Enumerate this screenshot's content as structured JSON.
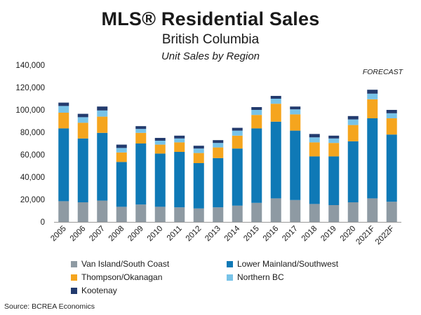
{
  "title": "MLS® Residential Sales",
  "subtitle": "British Columbia",
  "subtitle2": "Unit Sales by Region",
  "forecast_label": "FORECAST",
  "source": "Source: BCREA Economics",
  "colors": {
    "van_island": "#8E9AA3",
    "lower_mainland": "#0F79B6",
    "thompson": "#F5A51E",
    "northern": "#78C3E8",
    "kootenay": "#233B6E",
    "axis": "#999999",
    "text": "#1a1a1a"
  },
  "chart_data": {
    "type": "bar",
    "stacked": true,
    "categories": [
      "2005",
      "2006",
      "2007",
      "2008",
      "2009",
      "2010",
      "2011",
      "2012",
      "2013",
      "2014",
      "2015",
      "2016",
      "2017",
      "2018",
      "2019",
      "2020",
      "2021F",
      "2022F"
    ],
    "ylim": [
      0,
      140000
    ],
    "yticks": [
      0,
      20000,
      40000,
      60000,
      80000,
      100000,
      120000,
      140000
    ],
    "ytick_labels": [
      "0",
      "20,000",
      "40,000",
      "60,000",
      "80,000",
      "100,000",
      "120,000",
      "140,000"
    ],
    "series": [
      {
        "name": "Van Island/South Coast",
        "color_key": "van_island",
        "values": [
          18500,
          17500,
          19000,
          13500,
          15500,
          13500,
          13000,
          12000,
          13000,
          14500,
          17000,
          21000,
          19500,
          16000,
          15000,
          17500,
          21000,
          18000
        ]
      },
      {
        "name": "Lower Mainland/Southwest",
        "color_key": "lower_mainland",
        "values": [
          65000,
          57000,
          60500,
          40000,
          54500,
          47500,
          49500,
          40500,
          44000,
          51000,
          66500,
          68500,
          62000,
          42500,
          43500,
          54500,
          71500,
          60000
        ]
      },
      {
        "name": "Thompson/Okanagan",
        "color_key": "thompson",
        "values": [
          14000,
          14000,
          14500,
          8500,
          9500,
          8000,
          8500,
          9000,
          9500,
          11500,
          12000,
          16000,
          14500,
          12500,
          12000,
          14500,
          17000,
          14500
        ]
      },
      {
        "name": "Northern BC",
        "color_key": "northern",
        "values": [
          6000,
          5000,
          5500,
          4000,
          3500,
          3500,
          3500,
          4000,
          4000,
          4500,
          4500,
          4500,
          4500,
          4500,
          4000,
          5000,
          5000,
          4500
        ]
      },
      {
        "name": "Kootenay",
        "color_key": "kootenay",
        "values": [
          3000,
          3000,
          3500,
          3000,
          2500,
          2500,
          2500,
          2500,
          2500,
          2500,
          2500,
          2500,
          2500,
          3000,
          2500,
          3000,
          3500,
          3000
        ]
      }
    ],
    "legend": [
      {
        "label": "Van Island/South Coast",
        "color_key": "van_island"
      },
      {
        "label": "Lower Mainland/Southwest",
        "color_key": "lower_mainland"
      },
      {
        "label": "Thompson/Okanagan",
        "color_key": "thompson"
      },
      {
        "label": "Northern BC",
        "color_key": "northern"
      },
      {
        "label": "Kootenay",
        "color_key": "kootenay"
      }
    ],
    "legend_position": "bottom",
    "grid": false
  }
}
